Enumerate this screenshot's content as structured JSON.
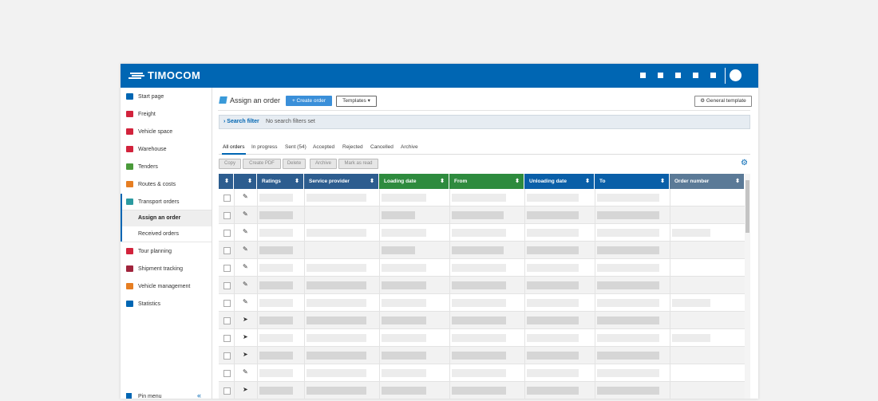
{
  "header": {
    "logo": "TIMOCOM"
  },
  "sidebar": {
    "items": [
      "Start page",
      "Freight",
      "Vehicle space",
      "Warehouse",
      "Tenders",
      "Routes & costs",
      "Transport orders",
      "Assign an order",
      "Received orders",
      "Tour planning",
      "Shipment tracking",
      "Vehicle management",
      "Statistics"
    ],
    "pin": "Pin menu"
  },
  "toolbar": {
    "title": "Assign an order",
    "create": "Create order",
    "templates": "Templates",
    "general_template": "General template"
  },
  "search": {
    "label": "Search filter",
    "status": "No search filters set"
  },
  "tabs": [
    "All orders",
    "In progress",
    "Sent (54)",
    "Accepted",
    "Rejected",
    "Cancelled",
    "Archive"
  ],
  "actions": [
    "Copy",
    "Create PDF",
    "Delete",
    "Archive",
    "Mark as read"
  ],
  "table": {
    "columns": [
      "Ratings",
      "Service provider",
      "Loading date",
      "From",
      "Unloading date",
      "To",
      "Order number"
    ]
  }
}
